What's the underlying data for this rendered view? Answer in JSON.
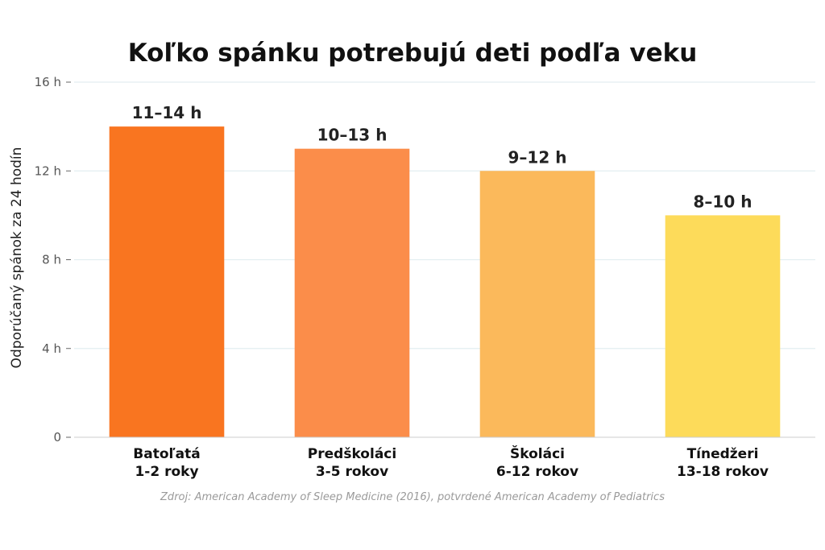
{
  "chart_data": {
    "type": "bar",
    "title": "Koľko spánku potrebujú deti podľa veku",
    "ylabel": "Odporúčaný spánok za 24 hodín",
    "xlabel": "",
    "ylim": [
      0,
      16
    ],
    "yticks": [
      {
        "value": 0,
        "label": "0"
      },
      {
        "value": 4,
        "label": "4 h"
      },
      {
        "value": 8,
        "label": "8 h"
      },
      {
        "value": 12,
        "label": "12 h"
      },
      {
        "value": 16,
        "label": "16 h"
      }
    ],
    "grid": true,
    "categories": [
      {
        "name": "Batoľatá",
        "age": "1-2 roky"
      },
      {
        "name": "Predškoláci",
        "age": "3-5 rokov"
      },
      {
        "name": "Školáci",
        "age": "6-12 rokov"
      },
      {
        "name": "Tínedžeri",
        "age": "13-18 rokov"
      }
    ],
    "values": [
      14,
      13,
      12,
      10
    ],
    "value_labels": [
      "11–14 h",
      "10–13 h",
      "9–12 h",
      "8–10 h"
    ],
    "colors": [
      "#f97520",
      "#fb8d4a",
      "#fbb95b",
      "#fddb5a"
    ],
    "source": "Zdroj: American Academy of Sleep Medicine (2016), potvrdené American Academy of Pediatrics"
  }
}
